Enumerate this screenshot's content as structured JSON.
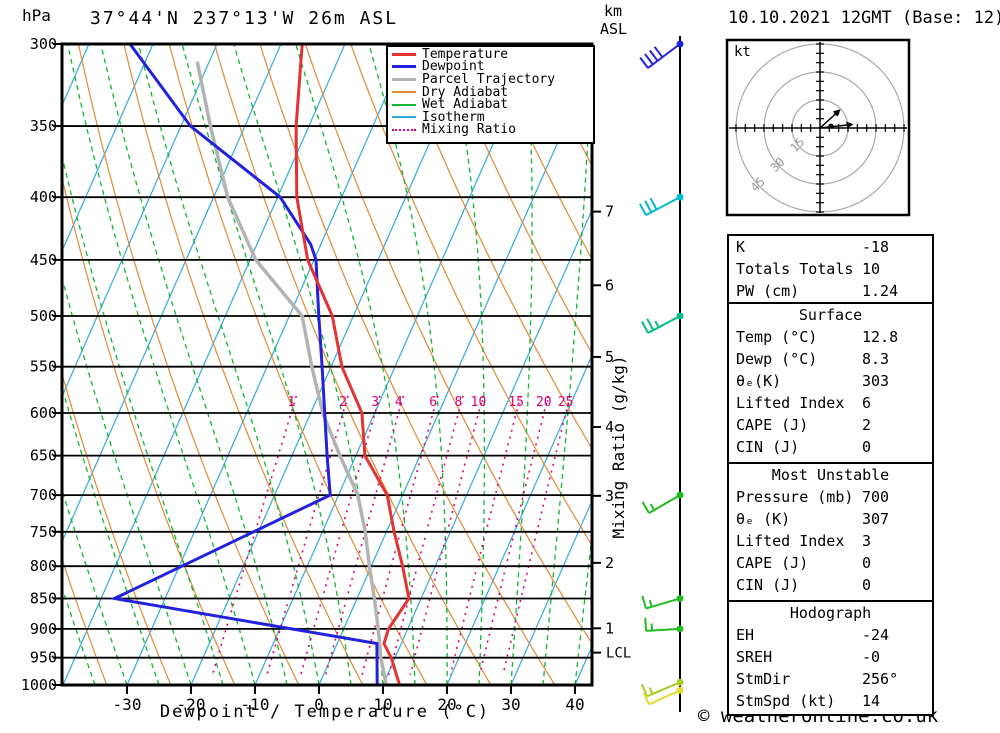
{
  "header": {
    "pressure_unit": "hPa",
    "title": "37°44'N 237°13'W 26m ASL",
    "km_label": "km",
    "asl_label": "ASL",
    "datetime": "10.10.2021 12GMT (Base: 12)",
    "kt_label": "kt",
    "copyright": "© weatheronline.co.uk"
  },
  "axes": {
    "xlabel": "Dewpoint / Temperature (°C)",
    "right_label": "Mixing Ratio (g/kg)",
    "lcl_label": "LCL"
  },
  "legend": {
    "items": [
      {
        "label": "Temperature",
        "color": "#e33333",
        "style": "solid",
        "thick": 3
      },
      {
        "label": "Dewpoint",
        "color": "#2222dd",
        "style": "solid",
        "thick": 3
      },
      {
        "label": "Parcel Trajectory",
        "color": "#b3b3b3",
        "style": "solid",
        "thick": 3
      },
      {
        "label": "Dry Adiabat",
        "color": "#e08a35",
        "style": "solid",
        "thick": 2
      },
      {
        "label": "Wet Adiabat",
        "color": "#10b535",
        "style": "solid",
        "thick": 2
      },
      {
        "label": "Isotherm",
        "color": "#33aadd",
        "style": "solid",
        "thick": 2
      },
      {
        "label": "Mixing Ratio",
        "color": "#dd0077",
        "style": "dotted",
        "thick": 2
      }
    ]
  },
  "panels": {
    "indices": {
      "rows": [
        {
          "label": "K",
          "value": "-18"
        },
        {
          "label": "Totals Totals",
          "value": "10"
        },
        {
          "label": "PW (cm)",
          "value": "1.24"
        }
      ]
    },
    "surface": {
      "title": "Surface",
      "rows": [
        {
          "label": "Temp (°C)",
          "value": "12.8"
        },
        {
          "label": "Dewp (°C)",
          "value": "8.3"
        },
        {
          "label": "θₑ(K)",
          "value": "303"
        },
        {
          "label": "Lifted Index",
          "value": "6"
        },
        {
          "label": "CAPE (J)",
          "value": "2"
        },
        {
          "label": "CIN (J)",
          "value": "0"
        }
      ]
    },
    "most_unstable": {
      "title": "Most Unstable",
      "rows": [
        {
          "label": "Pressure (mb)",
          "value": "700"
        },
        {
          "label": "θₑ (K)",
          "value": "307"
        },
        {
          "label": "Lifted Index",
          "value": "3"
        },
        {
          "label": "CAPE (J)",
          "value": "0"
        },
        {
          "label": "CIN (J)",
          "value": "0"
        }
      ]
    },
    "hodograph": {
      "title": "Hodograph",
      "rows": [
        {
          "label": "EH",
          "value": "-24"
        },
        {
          "label": "SREH",
          "value": "-0"
        },
        {
          "label": "StmDir",
          "value": "256°"
        },
        {
          "label": "StmSpd (kt)",
          "value": "14"
        }
      ]
    }
  },
  "chart_data": {
    "type": "line",
    "subtype": "skew-t-log-p-sounding",
    "title": "37°44'N 237°13'W 26m ASL",
    "datetime": "10.10.2021 12GMT (Base: 12)",
    "xlabel": "Dewpoint / Temperature (°C)",
    "ylabel_left": "hPa",
    "ylabel_right": "Mixing Ratio (g/kg)",
    "x_ticks": [
      -30,
      -20,
      -10,
      0,
      10,
      20,
      30,
      40
    ],
    "pressure_ticks": [
      300,
      350,
      400,
      450,
      500,
      550,
      600,
      650,
      700,
      750,
      800,
      850,
      900,
      950,
      1000
    ],
    "km_ticks": [
      {
        "km": 1,
        "hpa": 899
      },
      {
        "km": 2,
        "hpa": 795
      },
      {
        "km": 3,
        "hpa": 701
      },
      {
        "km": 4,
        "hpa": 616
      },
      {
        "km": 5,
        "hpa": 540
      },
      {
        "km": 6,
        "hpa": 472
      },
      {
        "km": 7,
        "hpa": 411
      }
    ],
    "lcl_hpa": 941,
    "mixing_ratio_labels": [
      1,
      2,
      3,
      4,
      6,
      8,
      10,
      15,
      20,
      25
    ],
    "series": [
      {
        "name": "Parcel Trajectory",
        "color": "#b3b3b3",
        "width": 3.5,
        "points": [
          [
            310,
            -61.9
          ],
          [
            350,
            -55.4
          ],
          [
            400,
            -47.8
          ],
          [
            450,
            -39.1
          ],
          [
            500,
            -28.0
          ],
          [
            550,
            -23.0
          ],
          [
            600,
            -18.1
          ],
          [
            650,
            -12.5
          ],
          [
            700,
            -7.0
          ],
          [
            750,
            -3.3
          ],
          [
            800,
            -0.3
          ],
          [
            850,
            2.7
          ],
          [
            900,
            5.4
          ],
          [
            950,
            7.8
          ],
          [
            1000,
            10.5
          ]
        ]
      },
      {
        "name": "Dewpoint",
        "color": "#2222dd",
        "width": 3,
        "points": [
          [
            300,
            -73.6
          ],
          [
            350,
            -58.5
          ],
          [
            400,
            -39.6
          ],
          [
            437,
            -31.6
          ],
          [
            450,
            -29.7
          ],
          [
            500,
            -25.4
          ],
          [
            550,
            -21.4
          ],
          [
            600,
            -17.8
          ],
          [
            650,
            -14.5
          ],
          [
            700,
            -11.3
          ],
          [
            850,
            -37.9
          ],
          [
            925,
            6.2
          ],
          [
            1000,
            9.1
          ]
        ]
      },
      {
        "name": "Temperature",
        "color": "#e33333",
        "width": 3,
        "points": [
          [
            300,
            -46.7
          ],
          [
            350,
            -42.0
          ],
          [
            400,
            -37.0
          ],
          [
            450,
            -31.0
          ],
          [
            500,
            -23.3
          ],
          [
            550,
            -18.3
          ],
          [
            600,
            -12.0
          ],
          [
            650,
            -8.6
          ],
          [
            700,
            -2.4
          ],
          [
            750,
            1.2
          ],
          [
            800,
            4.9
          ],
          [
            850,
            8.1
          ],
          [
            900,
            7.0
          ],
          [
            925,
            7.3
          ],
          [
            950,
            9.4
          ],
          [
            1000,
            12.6
          ]
        ]
      }
    ],
    "winds": [
      {
        "hpa": 300,
        "color": "#2222dd",
        "staff": [
          -32,
          24
        ],
        "full": 4,
        "half": 0
      },
      {
        "hpa": 400,
        "color": "#00bbcc",
        "staff": [
          -34,
          18
        ],
        "full": 3,
        "half": 0
      },
      {
        "hpa": 500,
        "color": "#00bb88",
        "staff": [
          -32,
          17
        ],
        "full": 2,
        "half": 1
      },
      {
        "hpa": 700,
        "color": "#22bb22",
        "staff": [
          -31,
          18
        ],
        "full": 1,
        "half": 1
      },
      {
        "hpa": 850,
        "color": "#22bb22",
        "staff": [
          -34,
          10
        ],
        "full": 1,
        "half": 1
      },
      {
        "hpa": 900,
        "color": "#22bb22",
        "staff": [
          -34,
          2
        ],
        "full": 1,
        "half": 1
      },
      {
        "hpa": 995,
        "color": "#aacc22",
        "staff": [
          -33,
          14
        ],
        "full": 1,
        "half": 1
      },
      {
        "hpa": 1010,
        "color": "#dddd33",
        "staff": [
          -31,
          14
        ],
        "full": 1,
        "half": 0
      }
    ],
    "hodograph": {
      "unit": "kt",
      "rings_kt": [
        15,
        30,
        45
      ],
      "vectors_kt": [
        {
          "u": 11,
          "v": 10
        },
        {
          "u": 18,
          "v": 2
        }
      ],
      "dots_kt": [
        {
          "u": 6,
          "v": 1
        },
        {
          "u": 9,
          "v": 8
        }
      ]
    }
  }
}
